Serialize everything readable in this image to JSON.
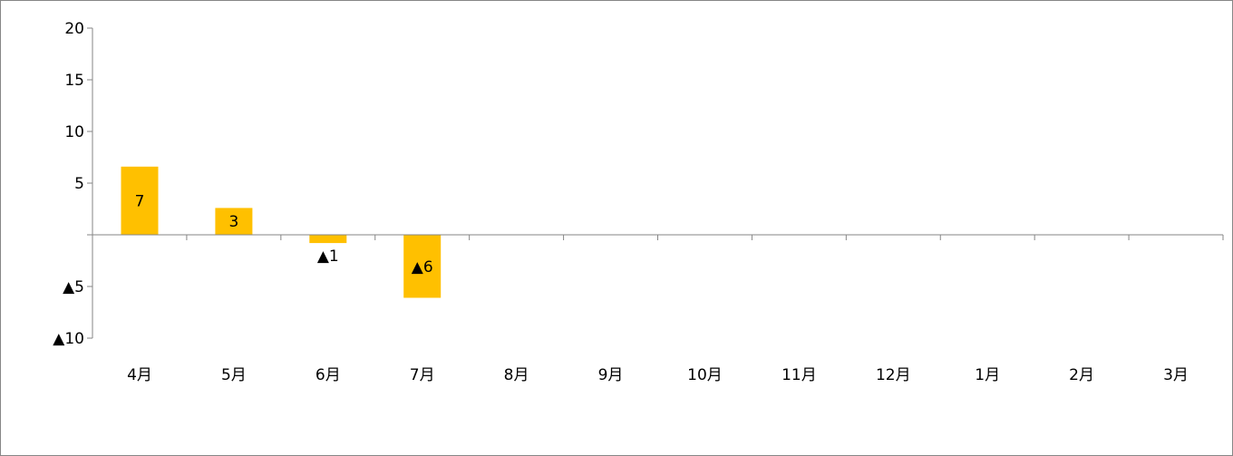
{
  "chart_data": {
    "type": "bar",
    "categories": [
      "4月",
      "5月",
      "6月",
      "7月",
      "8月",
      "9月",
      "10月",
      "11月",
      "12月",
      "1月",
      "2月",
      "3月"
    ],
    "values": [
      6.6,
      2.6,
      -0.8,
      -6.1,
      null,
      null,
      null,
      null,
      null,
      null,
      null,
      null
    ],
    "data_labels": [
      "7",
      "3",
      "▲1",
      "▲6",
      "",
      "",
      "",
      "",
      "",
      "",
      "",
      ""
    ],
    "y_ticks": [
      20,
      15,
      10,
      5,
      0,
      -5,
      -10
    ],
    "y_tick_labels": [
      "20",
      "15",
      "10",
      "5",
      "",
      "▲5",
      "▲10"
    ],
    "ylim": [
      -10,
      20
    ],
    "title": "",
    "xlabel": "",
    "ylabel": "",
    "grid": false,
    "legend": "none",
    "bar_color": "#FFC000",
    "axis_color": "#868686",
    "text_color": "#000000"
  }
}
